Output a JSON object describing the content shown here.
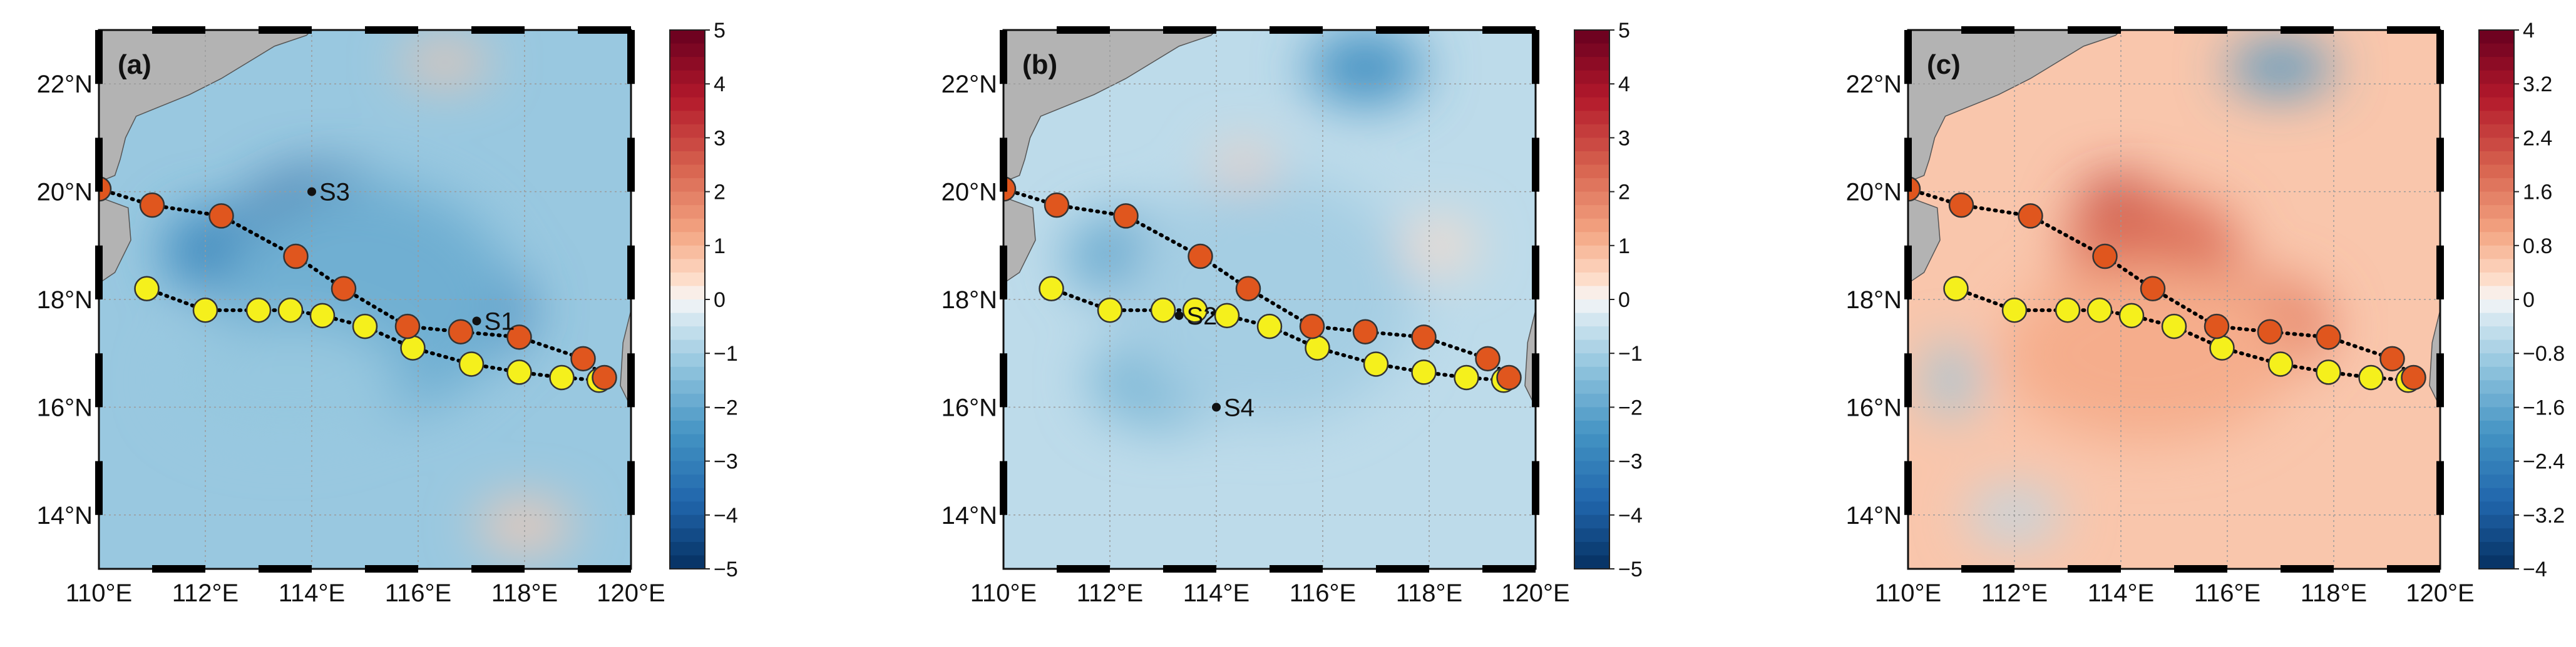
{
  "lon_ticks": [
    {
      "value": 110,
      "label": "110°E"
    },
    {
      "value": 112,
      "label": "112°E"
    },
    {
      "value": 114,
      "label": "114°E"
    },
    {
      "value": 116,
      "label": "116°E"
    },
    {
      "value": 118,
      "label": "118°E"
    },
    {
      "value": 120,
      "label": "120°E"
    }
  ],
  "lat_ticks": [
    {
      "value": 14,
      "label": "14°N"
    },
    {
      "value": 16,
      "label": "16°N"
    },
    {
      "value": 18,
      "label": "18°N"
    },
    {
      "value": 20,
      "label": "20°N"
    },
    {
      "value": 22,
      "label": "22°N"
    }
  ],
  "colors": {
    "land": "#b3b3b3",
    "grid": "#9a9a9a",
    "track_orange": "#e0561e",
    "track_yellow": "#f5f01c",
    "marker_edge": "#333333",
    "station": "#111111",
    "cold_strong": "#2b6bb2",
    "warm_strong": "#d04b3c"
  },
  "tracks": {
    "orange": [
      [
        110.0,
        20.05
      ],
      [
        111.0,
        19.75
      ],
      [
        112.3,
        19.55
      ],
      [
        113.7,
        18.8
      ],
      [
        114.6,
        18.2
      ],
      [
        115.8,
        17.5
      ],
      [
        116.8,
        17.4
      ],
      [
        117.9,
        17.3
      ],
      [
        119.1,
        16.9
      ],
      [
        119.5,
        16.55
      ]
    ],
    "yellow": [
      [
        110.9,
        18.2
      ],
      [
        112.0,
        17.8
      ],
      [
        113.0,
        17.8
      ],
      [
        113.6,
        17.8
      ],
      [
        114.2,
        17.7
      ],
      [
        115.0,
        17.5
      ],
      [
        115.9,
        17.1
      ],
      [
        117.0,
        16.8
      ],
      [
        117.9,
        16.65
      ],
      [
        118.7,
        16.55
      ],
      [
        119.4,
        16.5
      ]
    ]
  },
  "panels": [
    {
      "tag": "(a)",
      "colorbar": {
        "min": -5,
        "max": 5,
        "tick_labels": [
          "5",
          "4",
          "3",
          "2",
          "1",
          "0",
          "−1",
          "−2",
          "−3",
          "−4",
          "−5"
        ]
      },
      "anomaly_blobs": [
        {
          "lon": 114.3,
          "lat": 19.2,
          "rx": 3.2,
          "ry": 2.2,
          "value": -4.0
        },
        {
          "lon": 116.8,
          "lat": 17.8,
          "rx": 2.4,
          "ry": 1.8,
          "value": -3.2
        },
        {
          "lon": 112.2,
          "lat": 18.9,
          "rx": 1.8,
          "ry": 1.4,
          "value": -2.8
        },
        {
          "lon": 115.0,
          "lat": 18.0,
          "rx": 5.0,
          "ry": 4.0,
          "value": -1.8
        },
        {
          "lon": 113.5,
          "lat": 16.5,
          "rx": 4.0,
          "ry": 2.0,
          "value": -1.2
        },
        {
          "lon": 116.5,
          "lat": 22.4,
          "rx": 1.5,
          "ry": 0.6,
          "value": 0.8
        },
        {
          "lon": 118.0,
          "lat": 13.8,
          "rx": 1.6,
          "ry": 0.8,
          "value": 0.7
        }
      ],
      "stations": [
        {
          "label": "S3",
          "lon": 114.0,
          "lat": 20.0
        },
        {
          "label": "S1",
          "lon": 117.1,
          "lat": 17.6
        }
      ]
    },
    {
      "tag": "(b)",
      "colorbar": {
        "min": -5,
        "max": 5,
        "tick_labels": [
          "5",
          "4",
          "3",
          "2",
          "1",
          "0",
          "−1",
          "−2",
          "−3",
          "−4",
          "−5"
        ]
      },
      "anomaly_blobs": [
        {
          "lon": 116.8,
          "lat": 22.3,
          "rx": 2.0,
          "ry": 1.2,
          "value": -2.6
        },
        {
          "lon": 112.4,
          "lat": 18.8,
          "rx": 2.2,
          "ry": 1.4,
          "value": -2.0
        },
        {
          "lon": 113.0,
          "lat": 16.5,
          "rx": 2.5,
          "ry": 1.6,
          "value": -1.6
        },
        {
          "lon": 115.0,
          "lat": 18.0,
          "rx": 5.0,
          "ry": 4.2,
          "value": -1.0
        },
        {
          "lon": 114.5,
          "lat": 20.5,
          "rx": 1.0,
          "ry": 0.6,
          "value": 0.6
        },
        {
          "lon": 118.2,
          "lat": 19.0,
          "rx": 1.2,
          "ry": 0.8,
          "value": 0.4
        }
      ],
      "stations": [
        {
          "label": "S2",
          "lon": 113.3,
          "lat": 17.7
        },
        {
          "label": "S4",
          "lon": 114.0,
          "lat": 16.0
        }
      ]
    },
    {
      "tag": "(c)",
      "colorbar": {
        "min": -4,
        "max": 4,
        "tick_labels": [
          "4",
          "3.2",
          "2.4",
          "1.6",
          "0.8",
          "0",
          "−0.8",
          "−1.6",
          "−2.4",
          "−3.2",
          "−4"
        ]
      },
      "anomaly_blobs": [
        {
          "lon": 114.0,
          "lat": 19.7,
          "rx": 1.4,
          "ry": 1.0,
          "value": 3.0
        },
        {
          "lon": 116.7,
          "lat": 17.7,
          "rx": 1.1,
          "ry": 0.9,
          "value": 2.8
        },
        {
          "lon": 114.6,
          "lat": 18.9,
          "rx": 3.0,
          "ry": 1.9,
          "value": 1.8
        },
        {
          "lon": 116.5,
          "lat": 17.5,
          "rx": 2.6,
          "ry": 1.7,
          "value": 1.6
        },
        {
          "lon": 114.5,
          "lat": 17.0,
          "rx": 5.0,
          "ry": 3.0,
          "value": 0.9
        },
        {
          "lon": 117.0,
          "lat": 22.3,
          "rx": 1.8,
          "ry": 0.8,
          "value": -2.0
        },
        {
          "lon": 110.8,
          "lat": 16.5,
          "rx": 0.8,
          "ry": 1.2,
          "value": -1.0
        },
        {
          "lon": 112.0,
          "lat": 14.0,
          "rx": 1.6,
          "ry": 0.8,
          "value": -0.6
        }
      ],
      "stations": []
    }
  ]
}
